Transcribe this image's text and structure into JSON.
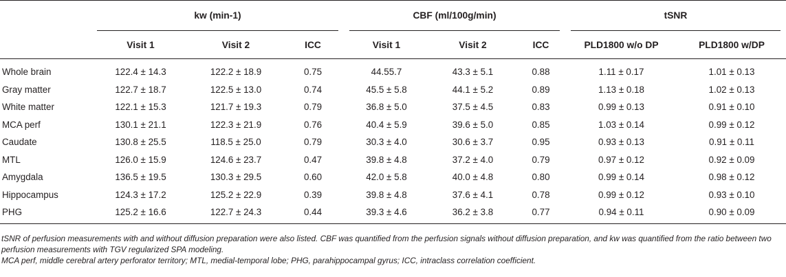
{
  "table": {
    "groups": [
      "kw (min-1)",
      "CBF (ml/100g/min)",
      "tSNR"
    ],
    "subheaders": [
      "Visit 1",
      "Visit 2",
      "ICC",
      "Visit 1",
      "Visit 2",
      "ICC",
      "PLD1800 w/o DP",
      "PLD1800 w/DP"
    ],
    "rows": [
      {
        "label": "Whole brain",
        "cells": [
          "122.4 ± 14.3",
          "122.2 ± 18.9",
          "0.75",
          "44.55.7",
          "43.3 ± 5.1",
          "0.88",
          "1.11 ± 0.17",
          "1.01 ± 0.13"
        ]
      },
      {
        "label": "Gray matter",
        "cells": [
          "122.7 ± 18.7",
          "122.5 ± 13.0",
          "0.74",
          "45.5 ± 5.8",
          "44.1 ± 5.2",
          "0.89",
          "1.13 ± 0.18",
          "1.02 ± 0.13"
        ]
      },
      {
        "label": "White matter",
        "cells": [
          "122.1 ± 15.3",
          "121.7 ± 19.3",
          "0.79",
          "36.8 ± 5.0",
          "37.5 ± 4.5",
          "0.83",
          "0.99 ± 0.13",
          "0.91 ± 0.10"
        ]
      },
      {
        "label": "MCA perf",
        "cells": [
          "130.1 ± 21.1",
          "122.3 ± 21.9",
          "0.76",
          "40.4 ± 5.9",
          "39.6 ± 5.0",
          "0.85",
          "1.03 ± 0.14",
          "0.99 ± 0.12"
        ]
      },
      {
        "label": "Caudate",
        "cells": [
          "130.8 ± 25.5",
          "118.5 ± 25.0",
          "0.79",
          "30.3 ± 4.0",
          "30.6 ± 3.7",
          "0.95",
          "0.93 ± 0.13",
          "0.91 ± 0.11"
        ]
      },
      {
        "label": "MTL",
        "cells": [
          "126.0 ± 15.9",
          "124.6 ± 23.7",
          "0.47",
          "39.8 ± 4.8",
          "37.2 ± 4.0",
          "0.79",
          "0.97 ± 0.12",
          "0.92 ± 0.09"
        ]
      },
      {
        "label": "Amygdala",
        "cells": [
          "136.5 ± 19.5",
          "130.3 ± 29.5",
          "0.60",
          "42.0 ± 5.8",
          "40.0 ± 4.8",
          "0.80",
          "0.99 ± 0.14",
          "0.98 ± 0.12"
        ]
      },
      {
        "label": "Hippocampus",
        "cells": [
          "124.3 ± 17.2",
          "125.2 ± 22.9",
          "0.39",
          "39.8 ± 4.8",
          "37.6 ± 4.1",
          "0.78",
          "0.99 ± 0.12",
          "0.93 ± 0.10"
        ]
      },
      {
        "label": "PHG",
        "cells": [
          "125.2 ± 16.6",
          "122.7 ± 24.3",
          "0.44",
          "39.3 ± 4.6",
          "36.2 ± 3.8",
          "0.77",
          "0.94 ± 0.11",
          "0.90 ± 0.09"
        ]
      }
    ]
  },
  "footnotes": {
    "note1": "tSNR of perfusion measurements with and without diffusion preparation were also listed. CBF was quantified from the perfusion signals without diffusion preparation, and kw was quantified from the ratio between two perfusion measurements with TGV regularized SPA modeling.",
    "note2": "MCA perf, middle cerebral artery perforator territory; MTL, medial-temporal lobe; PHG, parahippocampal gyrus; ICC, intraclass correlation coefficient."
  }
}
